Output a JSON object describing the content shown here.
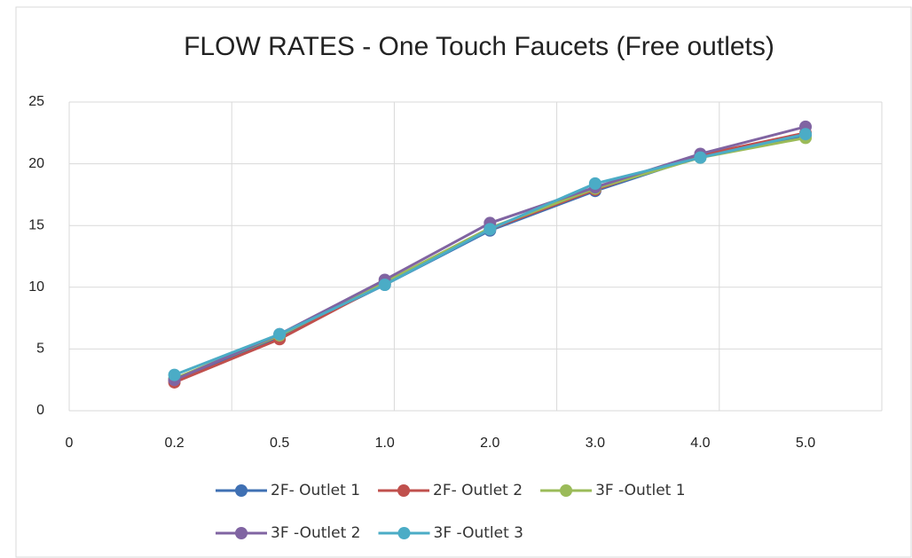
{
  "chart_data": {
    "type": "line",
    "title": "FLOW RATES - One Touch Faucets (Free outlets)",
    "categories": [
      "0",
      "0.2",
      "0.5",
      "1.0",
      "2.0",
      "3.0",
      "4.0",
      "5.0"
    ],
    "series": [
      {
        "name": "2F- Outlet 1",
        "color": "#3f70b3",
        "values": [
          null,
          2.5,
          6.0,
          10.2,
          14.6,
          17.8,
          20.6,
          22.3
        ]
      },
      {
        "name": "2F- Outlet 2",
        "color": "#c0504d",
        "values": [
          null,
          2.3,
          5.8,
          10.3,
          14.7,
          17.9,
          20.7,
          22.5
        ]
      },
      {
        "name": "3F -Outlet 1",
        "color": "#9bbb59",
        "values": [
          null,
          2.6,
          6.1,
          10.4,
          14.8,
          18.0,
          20.5,
          22.1
        ]
      },
      {
        "name": "3F -Outlet 2",
        "color": "#8064a2",
        "values": [
          null,
          2.5,
          6.2,
          10.6,
          15.2,
          18.1,
          20.8,
          23.0
        ]
      },
      {
        "name": "3F -Outlet 3",
        "color": "#4bacc6",
        "values": [
          null,
          2.9,
          6.2,
          10.2,
          14.7,
          18.4,
          20.5,
          22.4
        ]
      }
    ],
    "ylim": [
      0,
      25
    ],
    "yticks": [
      0,
      5,
      10,
      15,
      20,
      25
    ],
    "grid": true,
    "legend": "bottom"
  }
}
